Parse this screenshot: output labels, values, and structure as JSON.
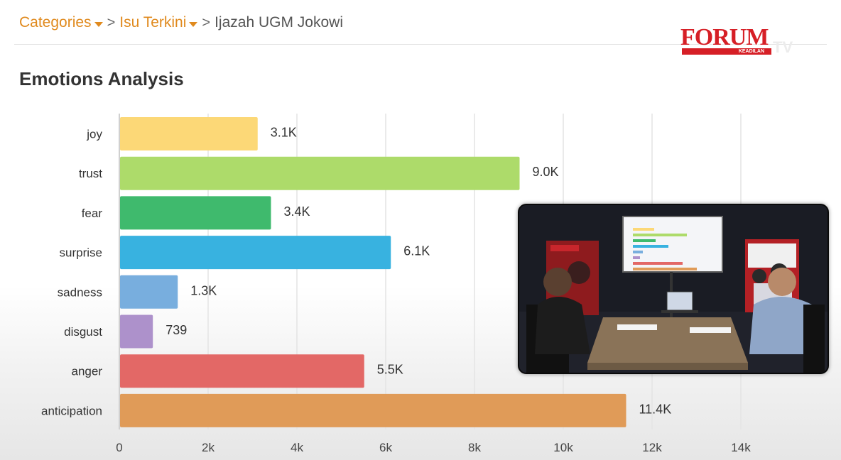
{
  "breadcrumb": {
    "items": [
      {
        "label": "Categories",
        "dropdown": true
      },
      {
        "label": "Isu Terkini",
        "dropdown": true
      },
      {
        "label": "Ijazah UGM Jokowi",
        "dropdown": false
      }
    ],
    "separator": ">"
  },
  "page_title": "Emotions Analysis",
  "logo": {
    "text": "FORUM",
    "subtext": "KEADILAN",
    "suffix": "TV"
  },
  "colors": {
    "accent": "#e08a1e",
    "brand": "#d61f26"
  },
  "inset": {
    "description_icon": "video-feed-icon"
  },
  "chart_data": {
    "type": "bar",
    "orientation": "horizontal",
    "categories": [
      "joy",
      "trust",
      "fear",
      "surprise",
      "sadness",
      "disgust",
      "anger",
      "anticipation"
    ],
    "values": [
      3100,
      9000,
      3400,
      6100,
      1300,
      739,
      5500,
      11400
    ],
    "labels": [
      "3.1K",
      "9.0K",
      "3.4K",
      "6.1K",
      "1.3K",
      "739",
      "5.5K",
      "11.4K"
    ],
    "colors": [
      "#fcd877",
      "#addb6a",
      "#3fba6d",
      "#38b2e0",
      "#78aede",
      "#ad91cb",
      "#e36866",
      "#e09b58"
    ],
    "xlim": [
      0,
      14000
    ],
    "xticks": [
      0,
      2000,
      4000,
      6000,
      8000,
      10000,
      12000,
      14000
    ],
    "xtick_labels": [
      "0",
      "2k",
      "4k",
      "6k",
      "8k",
      "10k",
      "12k",
      "14k"
    ],
    "grid": true,
    "title": "",
    "xlabel": "",
    "ylabel": ""
  }
}
